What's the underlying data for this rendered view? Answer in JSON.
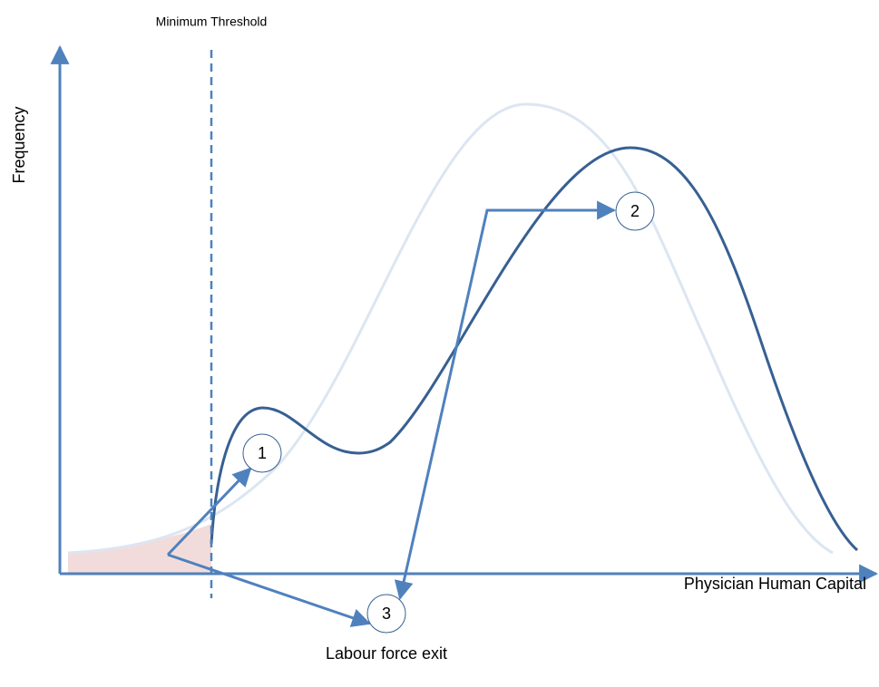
{
  "labels": {
    "threshold": "Minimum Threshold",
    "y_axis": "Frequency",
    "x_axis": "Physician Human Capital",
    "exit": "Labour force exit"
  },
  "nodes": [
    {
      "label": "1"
    },
    {
      "label": "2"
    },
    {
      "label": "3"
    }
  ]
}
